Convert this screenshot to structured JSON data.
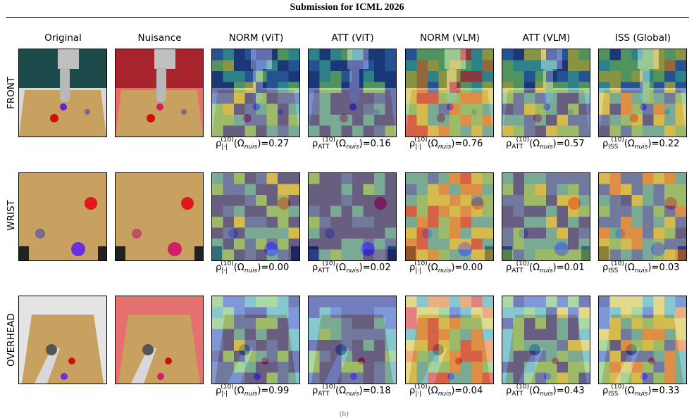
{
  "header": {
    "title": "Submission for ICML 2026"
  },
  "columns": [
    "Original",
    "Nuisance",
    "NORM (ViT)",
    "ATT (ViT)",
    "NORM (VLM)",
    "ATT (VLM)",
    "ISS (Global)"
  ],
  "rows": [
    "FRONT",
    "WRIST",
    "OVERHEAD"
  ],
  "metric_template": {
    "rho": "ρ",
    "sup": "(10)",
    "omega_open": "(Ω",
    "nuis": "nuis",
    "omega_close": ")="
  },
  "metric_subscripts": [
    "|·|",
    "ATT",
    "|·|",
    "ATT",
    "ISS"
  ],
  "metrics": [
    [
      "0.27",
      "0.16",
      "0.76",
      "0.57",
      "0.22"
    ],
    [
      "0.00",
      "0.02",
      "0.00",
      "0.01",
      "0.03"
    ],
    [
      "0.99",
      "0.18",
      "0.04",
      "0.43",
      "0.33"
    ]
  ],
  "caption": "(b)",
  "colors": {
    "table": "#c8a060",
    "wall_front": "#1d4a4a",
    "nuisance": "#a8242c",
    "jet_low": "#1a237e",
    "jet_high": "#e53935"
  }
}
